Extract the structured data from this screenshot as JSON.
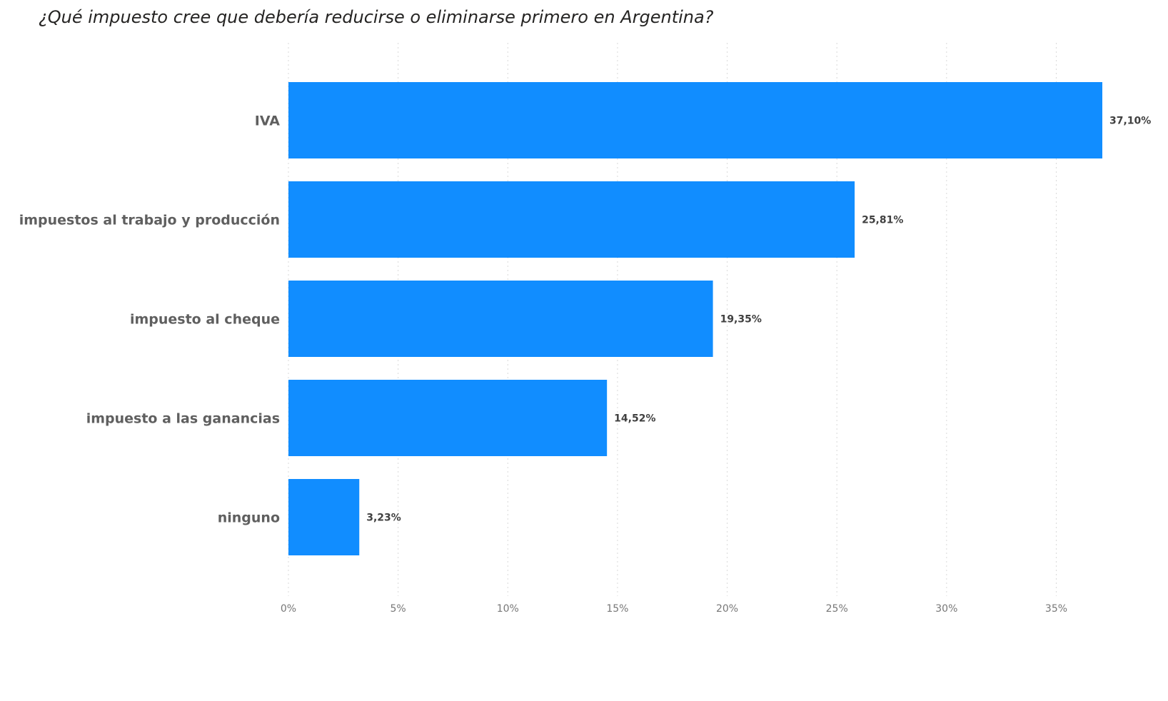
{
  "chart_data": {
    "type": "bar",
    "orientation": "horizontal",
    "title": "¿Qué impuesto cree que debería reducirse o eliminarse primero en Argentina?",
    "categories": [
      "IVA",
      "impuestos al trabajo y producción",
      "impuesto al cheque",
      "impuesto a las ganancias",
      "ninguno"
    ],
    "values": [
      37.1,
      25.81,
      19.35,
      14.52,
      3.23
    ],
    "value_labels": [
      "37,10%",
      "25,81%",
      "19,35%",
      "14,52%",
      "3,23%"
    ],
    "xlim": [
      0,
      37.1
    ],
    "xticks": [
      0,
      5,
      10,
      15,
      20,
      25,
      30,
      35
    ],
    "xtick_labels": [
      "0%",
      "5%",
      "10%",
      "15%",
      "20%",
      "25%",
      "30%",
      "35%"
    ],
    "grid": true,
    "legend": "none",
    "bar_color": "#118DFF"
  }
}
